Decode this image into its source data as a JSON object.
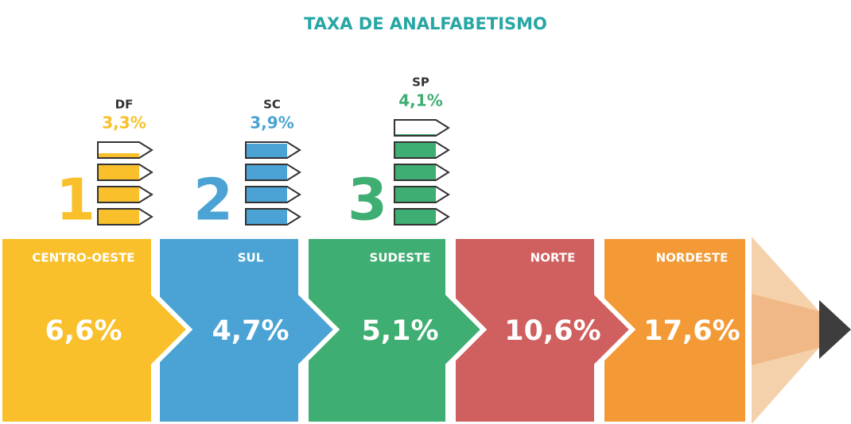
{
  "title": "TAXA DE ANALFABETISMO",
  "title_color": "#26a6a4",
  "states": [
    {
      "rank": "1",
      "name": "DF",
      "value": 3.3,
      "value_label": "3,3%",
      "color": "#f9c02b"
    },
    {
      "rank": "2",
      "name": "SC",
      "value": 3.9,
      "value_label": "3,9%",
      "color": "#4aa3d4"
    },
    {
      "rank": "3",
      "name": "SP",
      "value": 4.1,
      "value_label": "4,1%",
      "color": "#3fae72"
    }
  ],
  "regions": [
    {
      "name": "CENTRO-OESTE",
      "value_label": "6,6%",
      "color": "#f9c02b"
    },
    {
      "name": "SUL",
      "value_label": "4,7%",
      "color": "#4aa3d4"
    },
    {
      "name": "SUDESTE",
      "value_label": "5,1%",
      "color": "#3fae72"
    },
    {
      "name": "NORTE",
      "value_label": "10,6%",
      "color": "#d05f5f"
    },
    {
      "name": "NORDESTE",
      "value_label": "17,6%",
      "color": "#f39a36"
    }
  ]
}
